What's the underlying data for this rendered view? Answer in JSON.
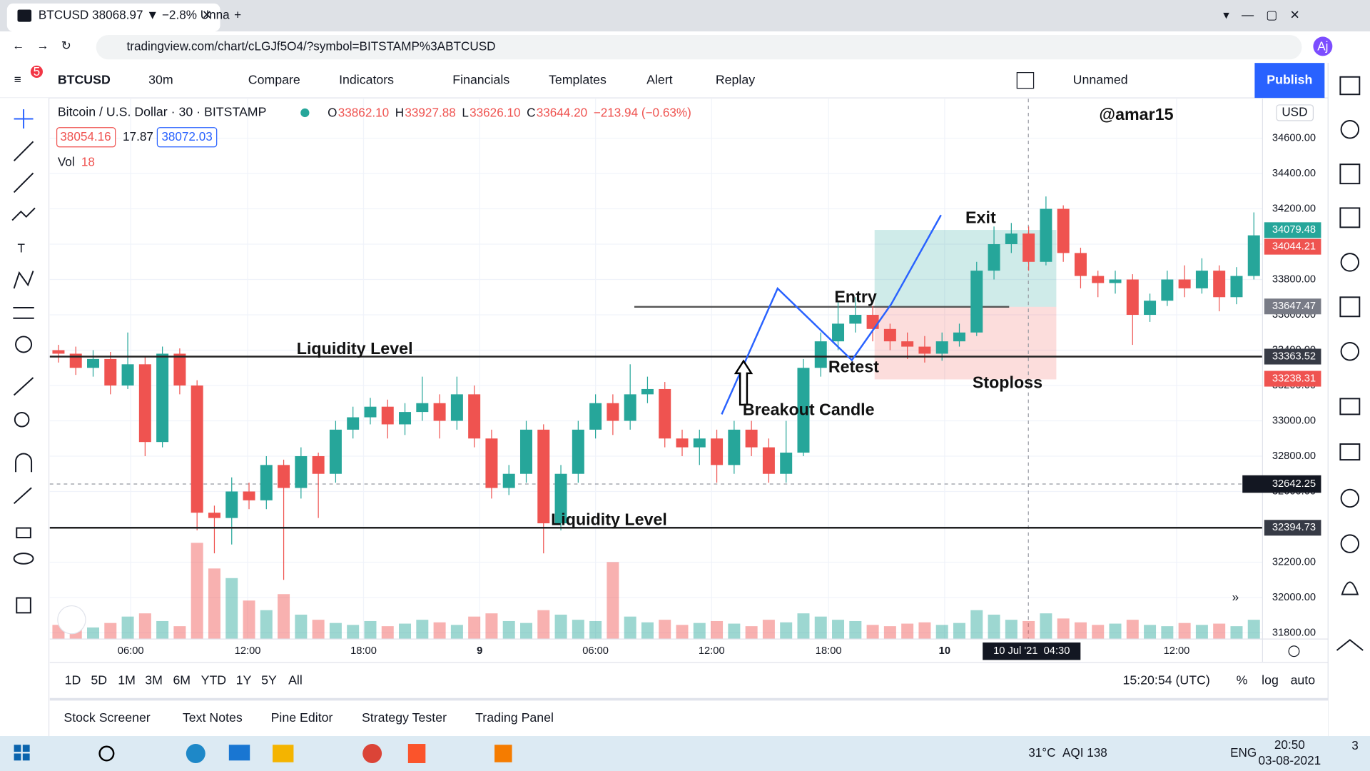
{
  "browser": {
    "tab_title": "BTCUSD 38068.97 ▼ −2.8% Unna",
    "url": "tradingview.com/chart/cLGJf5O4/?symbol=BITSTAMP%3ABTCUSD",
    "account": "Aj",
    "notification_count": "5"
  },
  "toolbar": {
    "symbol": "BTCUSD",
    "interval": "30m",
    "items": [
      "Compare",
      "Indicators",
      "Financials",
      "Templates",
      "Alert",
      "Replay"
    ],
    "layout_name": "Unnamed",
    "publish": "Publish"
  },
  "legend": {
    "title": "Bitcoin / U.S. Dollar · 30 · BITSTAMP",
    "ohlc": [
      {
        "key": "O",
        "value": "33862.10"
      },
      {
        "key": "H",
        "value": "33927.88"
      },
      {
        "key": "L",
        "value": "33626.10"
      },
      {
        "key": "C",
        "value": "33644.20"
      }
    ],
    "change": "−213.94 (−0.63%)",
    "bid": "38054.16",
    "spread": "17.87",
    "ask": "38072.03",
    "volume_label": "Vol",
    "volume_value": "18",
    "currency": "USD"
  },
  "chart_data": {
    "type": "candlestick",
    "up_color": "#26a69a",
    "down_color": "#ef5350",
    "candles": [
      [
        33400,
        33430,
        33330,
        33380
      ],
      [
        33380,
        33420,
        33260,
        33300
      ],
      [
        33300,
        33400,
        33250,
        33350
      ],
      [
        33350,
        33390,
        33150,
        33200
      ],
      [
        33200,
        33500,
        33180,
        33320
      ],
      [
        33320,
        33360,
        32800,
        32880
      ],
      [
        32880,
        33420,
        32850,
        33380
      ],
      [
        33380,
        33410,
        33150,
        33200
      ],
      [
        33200,
        33230,
        32380,
        32480
      ],
      [
        32480,
        32520,
        32250,
        32450
      ],
      [
        32450,
        32680,
        32300,
        32600
      ],
      [
        32600,
        32650,
        32500,
        32550
      ],
      [
        32550,
        32800,
        32500,
        32750
      ],
      [
        32750,
        32780,
        32100,
        32620
      ],
      [
        32620,
        32850,
        32560,
        32800
      ],
      [
        32800,
        32820,
        32450,
        32700
      ],
      [
        32700,
        33000,
        32650,
        32950
      ],
      [
        32950,
        33080,
        32900,
        33020
      ],
      [
        33020,
        33130,
        32980,
        33080
      ],
      [
        33080,
        33120,
        32900,
        32980
      ],
      [
        32980,
        33100,
        32920,
        33050
      ],
      [
        33050,
        33250,
        33000,
        33100
      ],
      [
        33100,
        33150,
        32900,
        33000
      ],
      [
        33000,
        33250,
        32950,
        33150
      ],
      [
        33150,
        33200,
        32850,
        32900
      ],
      [
        32900,
        32950,
        32560,
        32620
      ],
      [
        32620,
        32750,
        32580,
        32700
      ],
      [
        32700,
        33000,
        32650,
        32950
      ],
      [
        32950,
        32980,
        32250,
        32420
      ],
      [
        32420,
        32750,
        32380,
        32700
      ],
      [
        32700,
        33000,
        32650,
        32950
      ],
      [
        32950,
        33150,
        32900,
        33100
      ],
      [
        33100,
        33150,
        32920,
        33000
      ],
      [
        33000,
        33320,
        32950,
        33150
      ],
      [
        33150,
        33250,
        33100,
        33180
      ],
      [
        33180,
        33220,
        32850,
        32900
      ],
      [
        32900,
        32950,
        32800,
        32850
      ],
      [
        32850,
        32950,
        32750,
        32900
      ],
      [
        32900,
        32950,
        32650,
        32750
      ],
      [
        32750,
        33000,
        32700,
        32950
      ],
      [
        32950,
        33000,
        32800,
        32850
      ],
      [
        32850,
        32900,
        32650,
        32700
      ],
      [
        32700,
        33000,
        32650,
        32820
      ],
      [
        32820,
        33350,
        32800,
        33300
      ],
      [
        33300,
        33500,
        33250,
        33450
      ],
      [
        33450,
        33680,
        33400,
        33550
      ],
      [
        33550,
        33700,
        33500,
        33600
      ],
      [
        33600,
        33650,
        33450,
        33520
      ],
      [
        33520,
        33550,
        33400,
        33450
      ],
      [
        33450,
        33500,
        33350,
        33420
      ],
      [
        33420,
        33480,
        33330,
        33380
      ],
      [
        33380,
        33500,
        33340,
        33450
      ],
      [
        33450,
        33550,
        33420,
        33500
      ],
      [
        33500,
        33900,
        33480,
        33850
      ],
      [
        33850,
        34100,
        33800,
        34000
      ],
      [
        34000,
        34120,
        33950,
        34060
      ],
      [
        34060,
        34100,
        33850,
        33900
      ],
      [
        33900,
        34270,
        33880,
        34200
      ],
      [
        34200,
        34220,
        33900,
        33950
      ],
      [
        33950,
        33980,
        33750,
        33820
      ],
      [
        33820,
        33850,
        33700,
        33780
      ],
      [
        33780,
        33850,
        33720,
        33800
      ],
      [
        33800,
        33830,
        33430,
        33600
      ],
      [
        33600,
        33720,
        33560,
        33680
      ],
      [
        33680,
        33850,
        33650,
        33800
      ],
      [
        33800,
        33880,
        33700,
        33750
      ],
      [
        33750,
        33920,
        33720,
        33850
      ],
      [
        33850,
        33880,
        33620,
        33700
      ],
      [
        33700,
        33870,
        33660,
        33820
      ],
      [
        33820,
        34180,
        33800,
        34050
      ]
    ],
    "volume": [
      22,
      30,
      18,
      25,
      35,
      40,
      28,
      20,
      150,
      110,
      95,
      60,
      45,
      70,
      38,
      30,
      25,
      22,
      28,
      20,
      24,
      30,
      26,
      22,
      35,
      40,
      28,
      25,
      45,
      38,
      30,
      28,
      120,
      35,
      26,
      30,
      22,
      25,
      28,
      24,
      20,
      30,
      26,
      40,
      35,
      30,
      28,
      22,
      20,
      24,
      26,
      22,
      25,
      45,
      38,
      30,
      28,
      40,
      32,
      26,
      22,
      24,
      30,
      22,
      20,
      25,
      22,
      24,
      20,
      30
    ],
    "ylim": [
      31765,
      34823
    ],
    "yticks": [
      {
        "value": 31800,
        "label": "31800.00"
      },
      {
        "value": 32000,
        "label": "32000.00"
      },
      {
        "value": 32200,
        "label": "32200.00"
      },
      {
        "value": 32400,
        "label": "32400.00"
      },
      {
        "value": 32600,
        "label": "32600.00"
      },
      {
        "value": 32800,
        "label": "32800.00"
      },
      {
        "value": 33000,
        "label": "33000.00"
      },
      {
        "value": 33200,
        "label": "33200.00"
      },
      {
        "value": 33400,
        "label": "33400.00"
      },
      {
        "value": 33600,
        "label": "33600.00"
      },
      {
        "value": 33800,
        "label": "33800.00"
      },
      {
        "value": 34000,
        "label": "34000.00"
      },
      {
        "value": 34200,
        "label": "34200.00"
      },
      {
        "value": 34400,
        "label": "34400.00"
      },
      {
        "value": 34600,
        "label": "34600.00"
      }
    ],
    "xticks": [
      {
        "value": 4.17,
        "label": "06:00"
      },
      {
        "value": 10.92,
        "label": "12:00"
      },
      {
        "value": 17.61,
        "label": "18:00"
      },
      {
        "value": 24.31,
        "label": "9"
      },
      {
        "value": 31.0,
        "label": "06:00"
      },
      {
        "value": 37.7,
        "label": "12:00"
      },
      {
        "value": 44.45,
        "label": "18:00"
      },
      {
        "value": 51.15,
        "label": "10"
      },
      {
        "value": 64.54,
        "label": "12:00"
      }
    ],
    "crosshair": {
      "x": {
        "value": 56.17,
        "label": "10 Jul '21  04:30"
      },
      "y": {
        "value": 32642.25,
        "label": "32642.25"
      }
    },
    "price_tags": [
      {
        "value": 34079.48,
        "label": "34079.48",
        "color": "#26a69a"
      },
      {
        "value": 34044.21,
        "label": "34044.21",
        "color": "#ef5350"
      },
      {
        "value": 33647.47,
        "label": "33647.47",
        "color": "#787b86"
      },
      {
        "value": 33363.52,
        "label": "33363.52",
        "color": "#363a45"
      },
      {
        "value": 33238.31,
        "label": "33238.31",
        "color": "#ef5350"
      },
      {
        "value": 32394.73,
        "label": "32394.73",
        "color": "#363a45"
      }
    ],
    "levels": [
      {
        "value": 33363.52,
        "label": "Liquidity Level"
      },
      {
        "value": 32394.73,
        "label": "Liquidity Level"
      }
    ],
    "annotations": {
      "author": "@amar15",
      "exit": "Exit",
      "entry": "Entry",
      "retest": "Retest",
      "stoploss": "Stoploss",
      "breakout": "Breakout Candle"
    }
  },
  "bottom_bar": {
    "ranges": [
      "1D",
      "5D",
      "1M",
      "3M",
      "6M",
      "YTD",
      "1Y",
      "5Y",
      "All"
    ],
    "clock": "15:20:54 (UTC)",
    "options": [
      "%",
      "log",
      "auto"
    ]
  },
  "panels": [
    "Stock Screener",
    "Text Notes",
    "Pine Editor",
    "Strategy Tester",
    "Trading Panel"
  ],
  "taskbar": {
    "temperature": "31°C",
    "aqi": "AQI 138",
    "language": "ENG",
    "time": "20:50",
    "date": "03-08-2021",
    "notifications": "3"
  }
}
